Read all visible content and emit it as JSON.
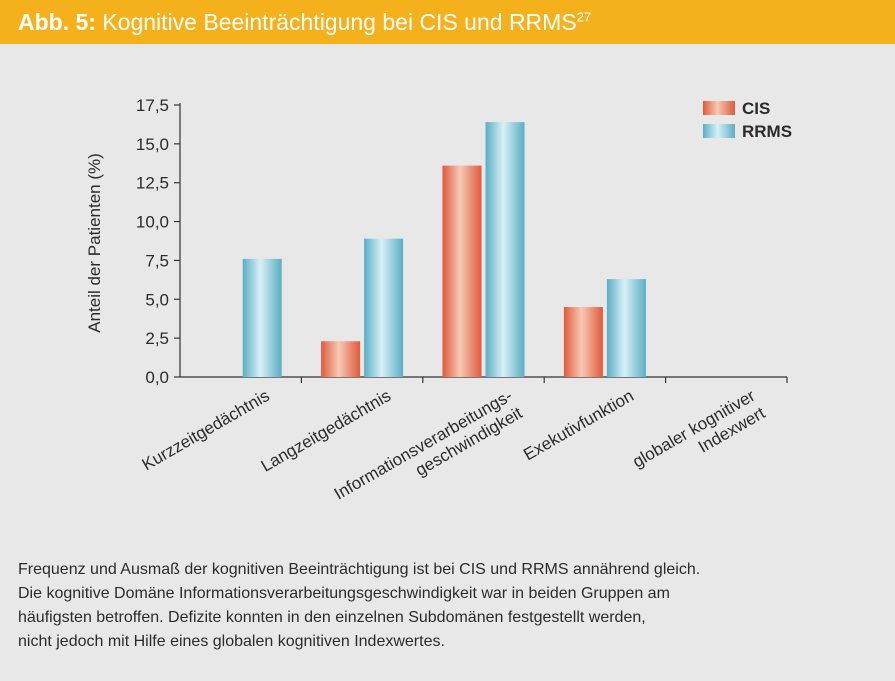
{
  "header": {
    "prefix": "Abb. 5:",
    "title": "Kognitive Beeinträchtigung bei CIS und RRMS",
    "superscript": "27",
    "background_color": "#f5b11c",
    "text_color": "#ffffff"
  },
  "chart_data": {
    "type": "bar",
    "categories": [
      [
        "Kurzzeitgedächtnis"
      ],
      [
        "Langzeitgedächtnis"
      ],
      [
        "Informationsverarbeitungs-",
        "geschwindigkeit"
      ],
      [
        "Exekutivfunktion"
      ],
      [
        "globaler kognitiver",
        "Indexwert"
      ]
    ],
    "series": [
      {
        "name": "CIS",
        "values": [
          0,
          2.3,
          13.6,
          4.5,
          0
        ],
        "color": "#e2603f"
      },
      {
        "name": "RRMS",
        "values": [
          7.6,
          8.9,
          16.4,
          6.3,
          0
        ],
        "color": "#6ab4c8"
      }
    ],
    "ylabel": "Anteil der Patienten (%)",
    "ylim": [
      0,
      17.5
    ],
    "yticks": [
      "0,0",
      "2,5",
      "5,0",
      "7,5",
      "10,0",
      "12,5",
      "15,0",
      "17,5"
    ],
    "legend_position": "top-right",
    "grid": false
  },
  "caption": {
    "lines": [
      "Frequenz und Ausmaß der kognitiven Beeinträchtigung ist bei CIS und RRMS annährend gleich.",
      "Die kognitive Domäne Informationsverarbeitungsgeschwindigkeit war in beiden Gruppen am",
      "häufigsten betroffen. Defizite konnten in den einzelnen Subdomänen festgestellt werden,",
      "nicht jedoch mit Hilfe eines globalen kognitiven Indexwertes."
    ]
  }
}
